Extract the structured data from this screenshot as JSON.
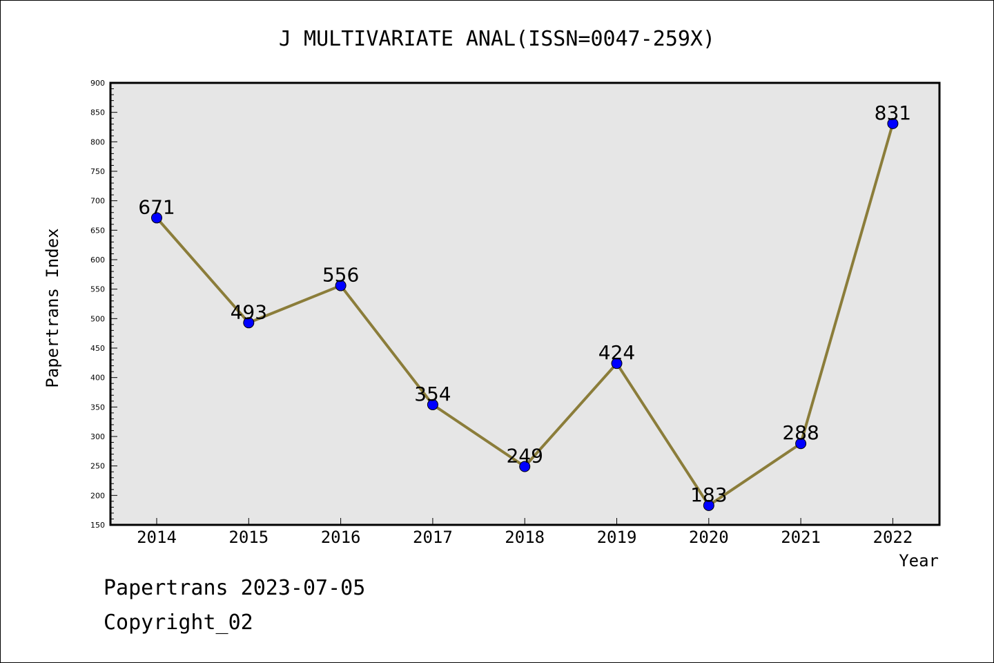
{
  "chart_data": {
    "type": "line",
    "title": "J MULTIVARIATE ANAL(ISSN=0047-259X)",
    "xlabel": "Year",
    "ylabel": "Papertrans Index",
    "categories": [
      "2014",
      "2015",
      "2016",
      "2017",
      "2018",
      "2019",
      "2020",
      "2021",
      "2022"
    ],
    "values": [
      671,
      493,
      556,
      354,
      249,
      424,
      183,
      288,
      831
    ],
    "data_labels": [
      "671",
      "493",
      "556",
      "354",
      "249",
      "424",
      "183",
      "288",
      "831"
    ],
    "ylim": [
      150,
      900
    ],
    "yticks": [
      "150",
      "200",
      "250",
      "300",
      "350",
      "400",
      "450",
      "500",
      "550",
      "600",
      "650",
      "700",
      "750",
      "800",
      "850",
      "900"
    ],
    "grid": false,
    "colors": {
      "line": "#8b7d3a",
      "marker": "#0000ff",
      "plot_background": "#e6e6e6"
    }
  },
  "footer": {
    "date_line": "Papertrans 2023-07-05",
    "copyright": "Copyright_02"
  }
}
